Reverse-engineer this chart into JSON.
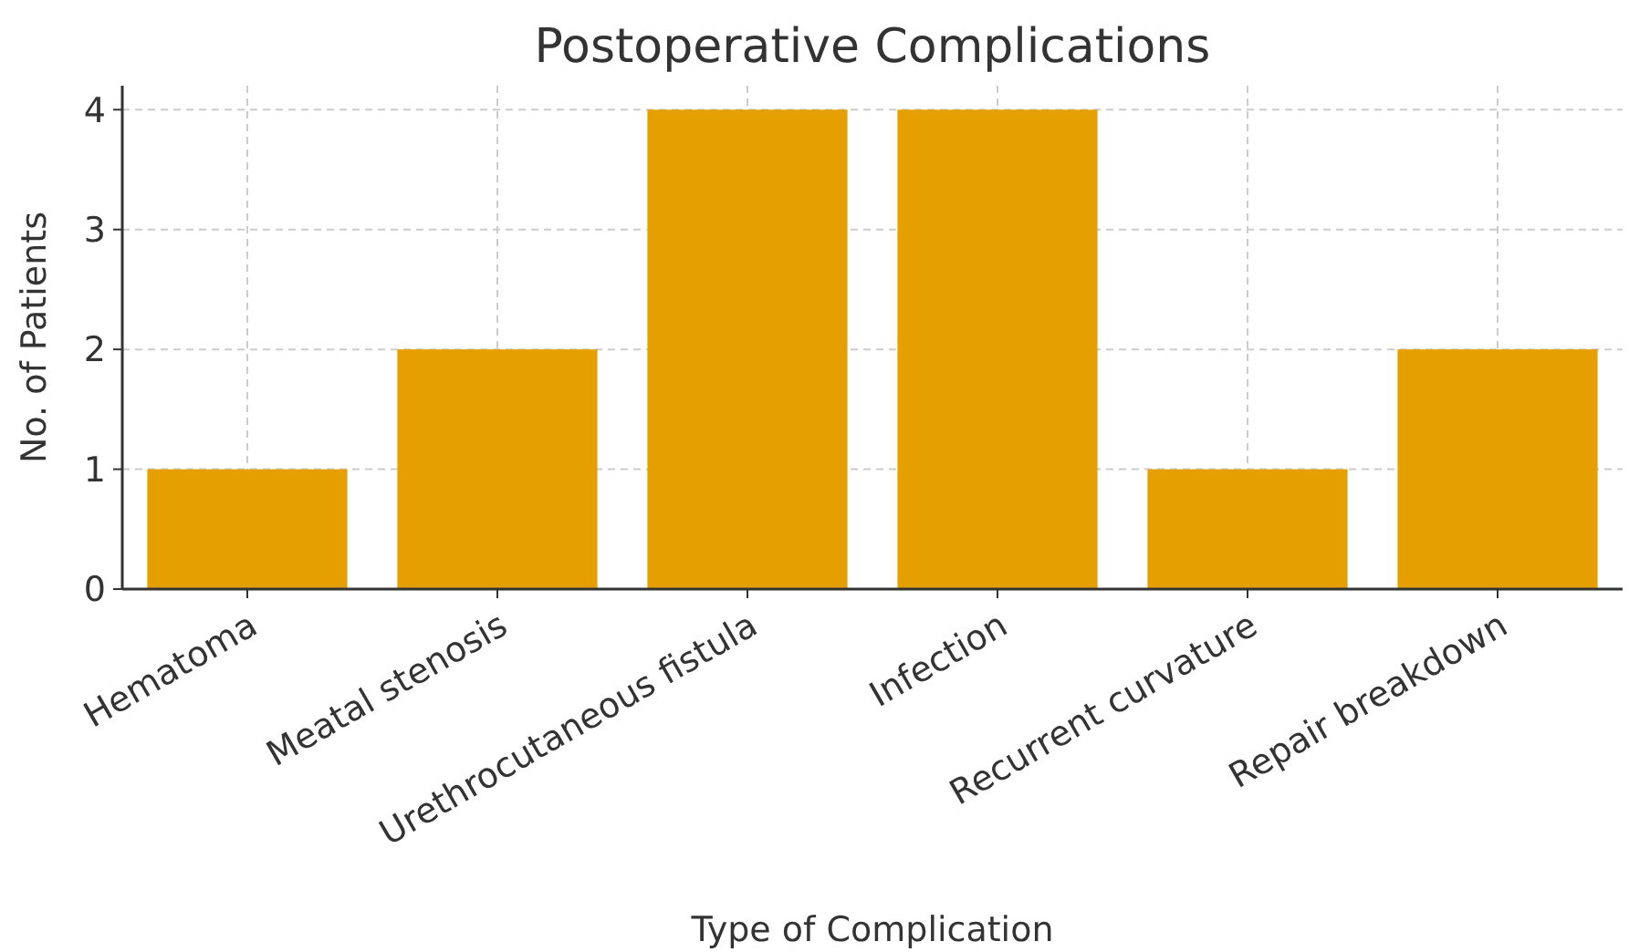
{
  "chart_data": {
    "type": "bar",
    "title": "Postoperative Complications",
    "xlabel": "Type of Complication",
    "ylabel": "No. of Patients",
    "categories": [
      "Hematoma",
      "Meatal stenosis",
      "Urethrocutaneous fistula",
      "Infection",
      "Recurrent curvature",
      "Repair breakdown"
    ],
    "values": [
      1,
      2,
      4,
      4,
      1,
      2
    ],
    "color": "#e69f00",
    "ylim": [
      0,
      4.2
    ],
    "yticks": [
      0,
      1,
      2,
      3,
      4
    ],
    "grid": true
  }
}
